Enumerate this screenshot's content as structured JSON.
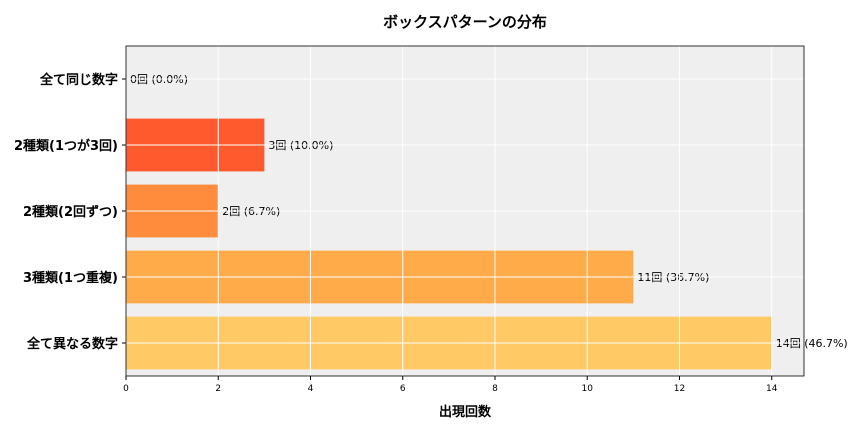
{
  "chart_data": {
    "type": "bar",
    "orientation": "horizontal",
    "title": "ボックスパターンの分布",
    "xlabel": "出現回数",
    "ylabel": "",
    "categories": [
      "全て同じ数字",
      "2種類(1つが3回)",
      "2種類(2回ずつ)",
      "3種類(1つ重複)",
      "全て異なる数字"
    ],
    "values": [
      0,
      3,
      2,
      11,
      14
    ],
    "data_labels": [
      "0回 (0.0%)",
      "3回 (10.0%)",
      "2回 (6.7%)",
      "11回 (36.7%)",
      "14回 (46.7%)"
    ],
    "colors": [
      "#ff3d1f",
      "#ff5a2e",
      "#ff8c3c",
      "#ffab4a",
      "#ffc966"
    ],
    "xlim": [
      0,
      14.7
    ],
    "xticks": [
      0,
      2,
      4,
      6,
      8,
      10,
      12,
      14
    ],
    "grid": true,
    "background": "#efefef"
  }
}
